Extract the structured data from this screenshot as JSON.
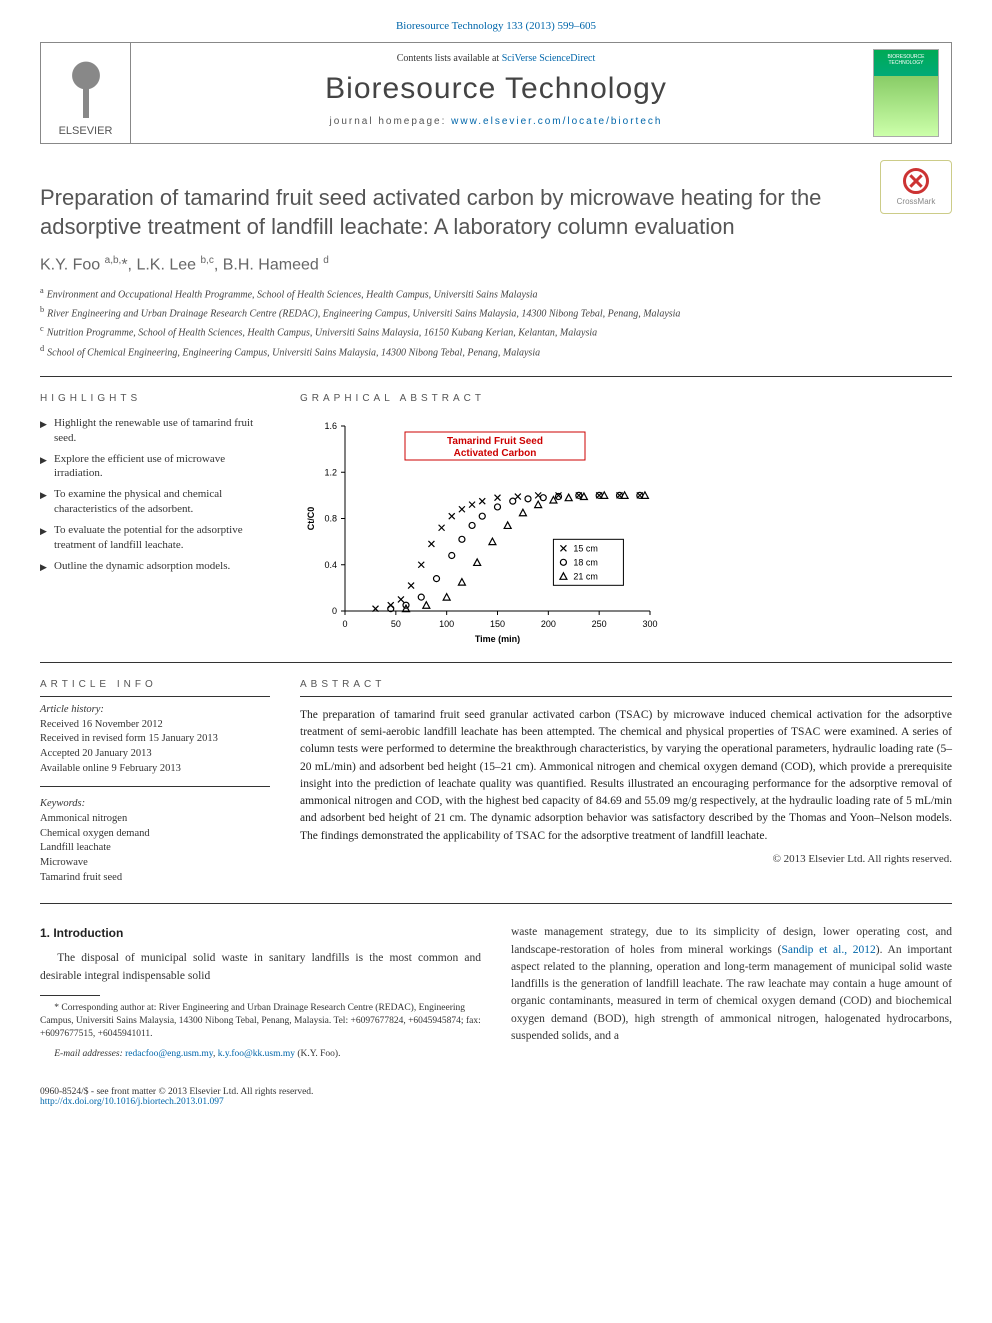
{
  "journal_ref": {
    "text": "Bioresource Technology 133 (2013) 599–605"
  },
  "header": {
    "publisher_logo_label": "ELSEVIER",
    "sd_prefix": "Contents lists available at ",
    "sd_link": "SciVerse ScienceDirect",
    "journal_name": "Bioresource Technology",
    "homepage_prefix": "journal homepage: ",
    "homepage_link": "www.elsevier.com/locate/biortech",
    "cover_label": "BIORESOURCE TECHNOLOGY"
  },
  "crossmark": "CrossMark",
  "title": "Preparation of tamarind fruit seed activated carbon by microwave heating for the adsorptive treatment of landfill leachate: A laboratory column evaluation",
  "authors_html": "K.Y. Foo <sup>a,b,</sup>*, L.K. Lee <sup>b,c</sup>, B.H. Hameed <sup>d</sup>",
  "affiliations": [
    {
      "sup": "a",
      "text": "Environment and Occupational Health Programme, School of Health Sciences, Health Campus, Universiti Sains Malaysia"
    },
    {
      "sup": "b",
      "text": "River Engineering and Urban Drainage Research Centre (REDAC), Engineering Campus, Universiti Sains Malaysia, 14300 Nibong Tebal, Penang, Malaysia"
    },
    {
      "sup": "c",
      "text": "Nutrition Programme, School of Health Sciences, Health Campus, Universiti Sains Malaysia, 16150 Kubang Kerian, Kelantan, Malaysia"
    },
    {
      "sup": "d",
      "text": "School of Chemical Engineering, Engineering Campus, Universiti Sains Malaysia, 14300 Nibong Tebal, Penang, Malaysia"
    }
  ],
  "highlights_head": "HIGHLIGHTS",
  "highlights": [
    "Highlight the renewable use of tamarind fruit seed.",
    "Explore the efficient use of microwave irradiation.",
    "To examine the physical and chemical characteristics of the adsorbent.",
    "To evaluate the potential for the adsorptive treatment of landfill leachate.",
    "Outline the dynamic adsorption models."
  ],
  "ga_head": "GRAPHICAL ABSTRACT",
  "ga_chart": {
    "type": "scatter",
    "title": "Tamarind Fruit Seed Activated Carbon",
    "title_color": "#cc0000",
    "title_fontsize": 10,
    "title_box_border": "#cc0000",
    "xlabel": "Time (min)",
    "ylabel": "C_t/C_0",
    "label_fontsize": 9,
    "xlim": [
      0,
      300
    ],
    "xtick_step": 50,
    "ylim": [
      0,
      1.6
    ],
    "ytick_step": 0.4,
    "background_color": "#ffffff",
    "axis_color": "#000000",
    "tick_color": "#000000",
    "series": [
      {
        "name": "15 cm",
        "marker": "x",
        "color": "#000000",
        "points": [
          [
            30,
            0.02
          ],
          [
            45,
            0.05
          ],
          [
            55,
            0.1
          ],
          [
            65,
            0.22
          ],
          [
            75,
            0.4
          ],
          [
            85,
            0.58
          ],
          [
            95,
            0.72
          ],
          [
            105,
            0.82
          ],
          [
            115,
            0.88
          ],
          [
            125,
            0.92
          ],
          [
            135,
            0.95
          ],
          [
            150,
            0.98
          ],
          [
            170,
            0.99
          ],
          [
            190,
            1.0
          ],
          [
            210,
            1.0
          ],
          [
            230,
            1.0
          ],
          [
            250,
            1.0
          ],
          [
            270,
            1.0
          ],
          [
            290,
            1.0
          ]
        ]
      },
      {
        "name": "18 cm",
        "marker": "o",
        "color": "#000000",
        "points": [
          [
            45,
            0.02
          ],
          [
            60,
            0.05
          ],
          [
            75,
            0.12
          ],
          [
            90,
            0.28
          ],
          [
            105,
            0.48
          ],
          [
            115,
            0.62
          ],
          [
            125,
            0.74
          ],
          [
            135,
            0.82
          ],
          [
            150,
            0.9
          ],
          [
            165,
            0.95
          ],
          [
            180,
            0.97
          ],
          [
            195,
            0.98
          ],
          [
            210,
            0.99
          ],
          [
            230,
            1.0
          ],
          [
            250,
            1.0
          ],
          [
            270,
            1.0
          ],
          [
            290,
            1.0
          ]
        ]
      },
      {
        "name": "21 cm",
        "marker": "triangle",
        "color": "#000000",
        "points": [
          [
            60,
            0.02
          ],
          [
            80,
            0.05
          ],
          [
            100,
            0.12
          ],
          [
            115,
            0.25
          ],
          [
            130,
            0.42
          ],
          [
            145,
            0.6
          ],
          [
            160,
            0.74
          ],
          [
            175,
            0.85
          ],
          [
            190,
            0.92
          ],
          [
            205,
            0.96
          ],
          [
            220,
            0.98
          ],
          [
            235,
            0.99
          ],
          [
            255,
            1.0
          ],
          [
            275,
            1.0
          ],
          [
            295,
            1.0
          ]
        ]
      }
    ],
    "legend_box": {
      "x": 205,
      "y_data": 0.62,
      "border": "#000000"
    }
  },
  "article_info_head": "ARTICLE INFO",
  "article_history_head": "Article history:",
  "article_history": [
    "Received 16 November 2012",
    "Received in revised form 15 January 2013",
    "Accepted 20 January 2013",
    "Available online 9 February 2013"
  ],
  "keywords_head": "Keywords:",
  "keywords": [
    "Ammonical nitrogen",
    "Chemical oxygen demand",
    "Landfill leachate",
    "Microwave",
    "Tamarind fruit seed"
  ],
  "abstract_head": "ABSTRACT",
  "abstract": "The preparation of tamarind fruit seed granular activated carbon (TSAC) by microwave induced chemical activation for the adsorptive treatment of semi-aerobic landfill leachate has been attempted. The chemical and physical properties of TSAC were examined. A series of column tests were performed to determine the breakthrough characteristics, by varying the operational parameters, hydraulic loading rate (5–20 mL/min) and adsorbent bed height (15–21 cm). Ammonical nitrogen and chemical oxygen demand (COD), which provide a prerequisite insight into the prediction of leachate quality was quantified. Results illustrated an encouraging performance for the adsorptive removal of ammonical nitrogen and COD, with the highest bed capacity of 84.69 and 55.09 mg/g respectively, at the hydraulic loading rate of 5 mL/min and adsorbent bed height of 21 cm. The dynamic adsorption behavior was satisfactory described by the Thomas and Yoon–Nelson models. The findings demonstrated the applicability of TSAC for the adsorptive treatment of landfill leachate.",
  "abstract_copyright": "© 2013 Elsevier Ltd. All rights reserved.",
  "section1_head": "1. Introduction",
  "body_left_p1": "The disposal of municipal solid waste in sanitary landfills is the most common and desirable integral indispensable solid",
  "body_right_p1a": "waste management strategy, due to its simplicity of design, lower operating cost, and landscape-restoration of holes from mineral workings (",
  "body_right_cite": "Sandip et al., 2012",
  "body_right_p1b": "). An important aspect related to the planning, operation and long-term management of municipal solid waste landfills is the generation of landfill leachate. The raw leachate may contain a huge amount of organic contaminants, measured in term of chemical oxygen demand (COD) and biochemical oxygen demand (BOD), high strength of ammonical nitrogen, halogenated hydrocarbons, suspended solids, and a",
  "footnote_corr": "* Corresponding author at: River Engineering and Urban Drainage Research Centre (REDAC), Engineering Campus, Universiti Sains Malaysia, 14300 Nibong Tebal, Penang, Malaysia. Tel: +6097677824, +6045945874; fax: +6097677515, +6045941011.",
  "footnote_email_label": "E-mail addresses: ",
  "footnote_email1": "redacfoo@eng.usm.my",
  "footnote_email_sep": ", ",
  "footnote_email2": "k.y.foo@kk.usm.my",
  "footnote_email_tail": " (K.Y. Foo).",
  "footer_issn": "0960-8524/$ - see front matter © 2013 Elsevier Ltd. All rights reserved.",
  "footer_doi": "http://dx.doi.org/10.1016/j.biortech.2013.01.097"
}
